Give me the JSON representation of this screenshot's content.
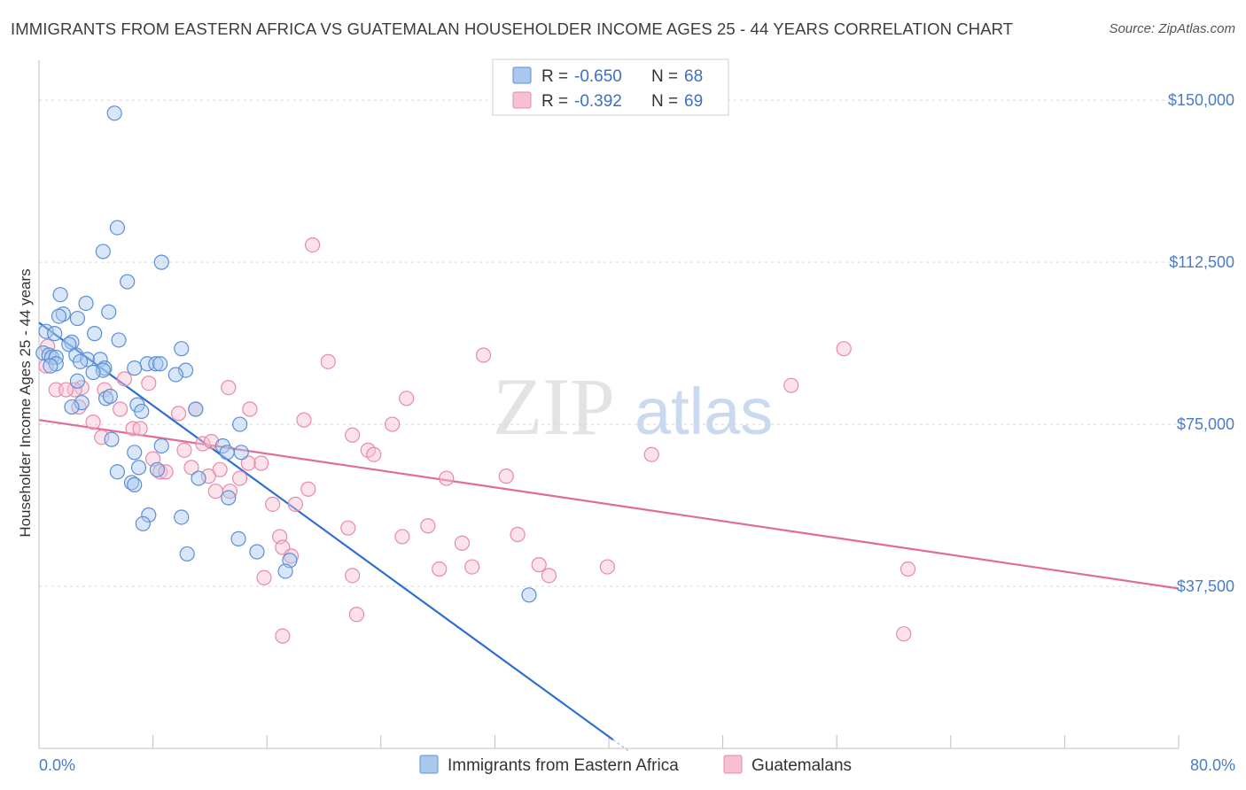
{
  "header": {
    "title": "IMMIGRANTS FROM EASTERN AFRICA VS GUATEMALAN HOUSEHOLDER INCOME AGES 25 - 44 YEARS CORRELATION CHART",
    "source": "Source: ZipAtlas.com"
  },
  "watermark": {
    "zip": "ZIP",
    "atlas": "atlas"
  },
  "legend": {
    "r_label": "R =",
    "n_label": "N =",
    "series1": {
      "r": "-0.650",
      "n": "68"
    },
    "series2": {
      "r": "-0.392",
      "n": "69"
    }
  },
  "colors": {
    "blue_fill": "#a8c8ee",
    "blue_stroke": "#5b8fd6",
    "blue_line": "#2f6fd0",
    "pink_fill": "#f6bfd2",
    "pink_stroke": "#e88aa8",
    "pink_line": "#e06d96",
    "grid": "#d7d7d7",
    "tick_label": "#4a7cc7"
  },
  "chart_data": {
    "type": "scatter",
    "title": "IMMIGRANTS FROM EASTERN AFRICA VS GUATEMALAN HOUSEHOLDER INCOME AGES 25 - 44 YEARS CORRELATION CHART",
    "xlabel": "",
    "ylabel": "Householder Income Ages 25 - 44 years",
    "xlim": [
      0,
      80
    ],
    "ylim": [
      0,
      157000
    ],
    "x_tick_labels": [
      "0.0%",
      "80.0%"
    ],
    "y_ticks": [
      37500,
      75000,
      112500,
      150000
    ],
    "y_tick_labels": [
      "$37,500",
      "$75,000",
      "$112,500",
      "$150,000"
    ],
    "grid": "horizontal dashed",
    "legend_position": "top-center",
    "series": [
      {
        "name": "Immigrants from Eastern Africa",
        "color": "#5b8fd6",
        "trend": {
          "x": [
            0.0,
            40.3
          ],
          "y": [
            98500,
            2000
          ]
        },
        "points": [
          [
            5.3,
            147000
          ],
          [
            5.5,
            120500
          ],
          [
            4.5,
            115000
          ],
          [
            8.6,
            112500
          ],
          [
            6.2,
            108000
          ],
          [
            1.5,
            105000
          ],
          [
            4.9,
            101000
          ],
          [
            1.7,
            100500
          ],
          [
            1.4,
            100000
          ],
          [
            2.7,
            99500
          ],
          [
            3.3,
            103000
          ],
          [
            0.5,
            96500
          ],
          [
            1.1,
            96000
          ],
          [
            3.9,
            96000
          ],
          [
            5.6,
            94500
          ],
          [
            2.3,
            94000
          ],
          [
            2.1,
            93500
          ],
          [
            10.0,
            92500
          ],
          [
            0.3,
            91500
          ],
          [
            0.7,
            91000
          ],
          [
            0.9,
            90500
          ],
          [
            1.2,
            90500
          ],
          [
            2.6,
            91000
          ],
          [
            3.4,
            90000
          ],
          [
            2.9,
            89500
          ],
          [
            4.3,
            90000
          ],
          [
            7.6,
            89000
          ],
          [
            8.2,
            89000
          ],
          [
            8.5,
            89000
          ],
          [
            6.7,
            88000
          ],
          [
            4.6,
            88000
          ],
          [
            4.5,
            87500
          ],
          [
            3.8,
            87000
          ],
          [
            10.3,
            87500
          ],
          [
            9.6,
            86500
          ],
          [
            2.7,
            85000
          ],
          [
            4.7,
            81000
          ],
          [
            5.0,
            81500
          ],
          [
            3.0,
            80000
          ],
          [
            6.9,
            79500
          ],
          [
            2.3,
            79000
          ],
          [
            11.0,
            78500
          ],
          [
            7.2,
            78000
          ],
          [
            14.1,
            75000
          ],
          [
            5.1,
            71500
          ],
          [
            12.9,
            70000
          ],
          [
            8.6,
            70000
          ],
          [
            6.7,
            68500
          ],
          [
            13.2,
            68500
          ],
          [
            14.2,
            68500
          ],
          [
            7.0,
            65000
          ],
          [
            8.3,
            64500
          ],
          [
            5.5,
            64000
          ],
          [
            11.2,
            62500
          ],
          [
            6.5,
            61500
          ],
          [
            6.7,
            61000
          ],
          [
            13.3,
            58000
          ],
          [
            7.7,
            54000
          ],
          [
            10.0,
            53500
          ],
          [
            7.3,
            52000
          ],
          [
            14.0,
            48500
          ],
          [
            15.3,
            45500
          ],
          [
            10.4,
            45000
          ],
          [
            17.6,
            43500
          ],
          [
            17.3,
            41000
          ],
          [
            34.4,
            35500
          ],
          [
            1.2,
            89000
          ],
          [
            0.8,
            88500
          ]
        ]
      },
      {
        "name": "Guatemalans",
        "color": "#e88aa8",
        "trend": {
          "x": [
            0.0,
            80.0
          ],
          "y": [
            76000,
            37000
          ]
        },
        "points": [
          [
            19.2,
            116500
          ],
          [
            0.6,
            93000
          ],
          [
            31.2,
            91000
          ],
          [
            56.5,
            92500
          ],
          [
            20.3,
            89500
          ],
          [
            0.5,
            88500
          ],
          [
            52.8,
            84000
          ],
          [
            6.0,
            85500
          ],
          [
            3.0,
            83500
          ],
          [
            2.5,
            83000
          ],
          [
            1.2,
            83000
          ],
          [
            1.9,
            83000
          ],
          [
            4.6,
            83000
          ],
          [
            7.7,
            84500
          ],
          [
            13.3,
            83500
          ],
          [
            25.8,
            81000
          ],
          [
            2.8,
            79000
          ],
          [
            5.7,
            78500
          ],
          [
            9.8,
            77500
          ],
          [
            11.0,
            78500
          ],
          [
            14.8,
            78500
          ],
          [
            18.6,
            76000
          ],
          [
            24.8,
            75000
          ],
          [
            3.8,
            75500
          ],
          [
            6.6,
            74000
          ],
          [
            7.1,
            74000
          ],
          [
            22.0,
            72500
          ],
          [
            4.4,
            72000
          ],
          [
            11.5,
            70500
          ],
          [
            12.1,
            71000
          ],
          [
            10.2,
            69000
          ],
          [
            23.1,
            69000
          ],
          [
            23.5,
            68000
          ],
          [
            43.0,
            68000
          ],
          [
            8.0,
            67000
          ],
          [
            14.7,
            66000
          ],
          [
            15.6,
            66000
          ],
          [
            10.7,
            65000
          ],
          [
            12.7,
            64500
          ],
          [
            8.5,
            64000
          ],
          [
            8.9,
            64000
          ],
          [
            11.9,
            63000
          ],
          [
            14.1,
            62500
          ],
          [
            28.6,
            62500
          ],
          [
            32.8,
            63000
          ],
          [
            18.9,
            60000
          ],
          [
            12.4,
            59500
          ],
          [
            13.4,
            59500
          ],
          [
            16.4,
            56500
          ],
          [
            18.0,
            56500
          ],
          [
            21.7,
            51000
          ],
          [
            27.3,
            51500
          ],
          [
            25.5,
            49000
          ],
          [
            33.6,
            49500
          ],
          [
            16.9,
            49000
          ],
          [
            17.1,
            46500
          ],
          [
            29.7,
            47500
          ],
          [
            17.7,
            44500
          ],
          [
            30.4,
            42000
          ],
          [
            35.1,
            42500
          ],
          [
            39.9,
            42000
          ],
          [
            35.8,
            40000
          ],
          [
            22.0,
            40000
          ],
          [
            28.1,
            41500
          ],
          [
            61.0,
            41500
          ],
          [
            15.8,
            39500
          ],
          [
            17.1,
            26000
          ],
          [
            22.3,
            31000
          ],
          [
            60.7,
            26500
          ]
        ]
      }
    ]
  },
  "bottom_legend": {
    "series1_label": "Immigrants from Eastern Africa",
    "series2_label": "Guatemalans"
  }
}
